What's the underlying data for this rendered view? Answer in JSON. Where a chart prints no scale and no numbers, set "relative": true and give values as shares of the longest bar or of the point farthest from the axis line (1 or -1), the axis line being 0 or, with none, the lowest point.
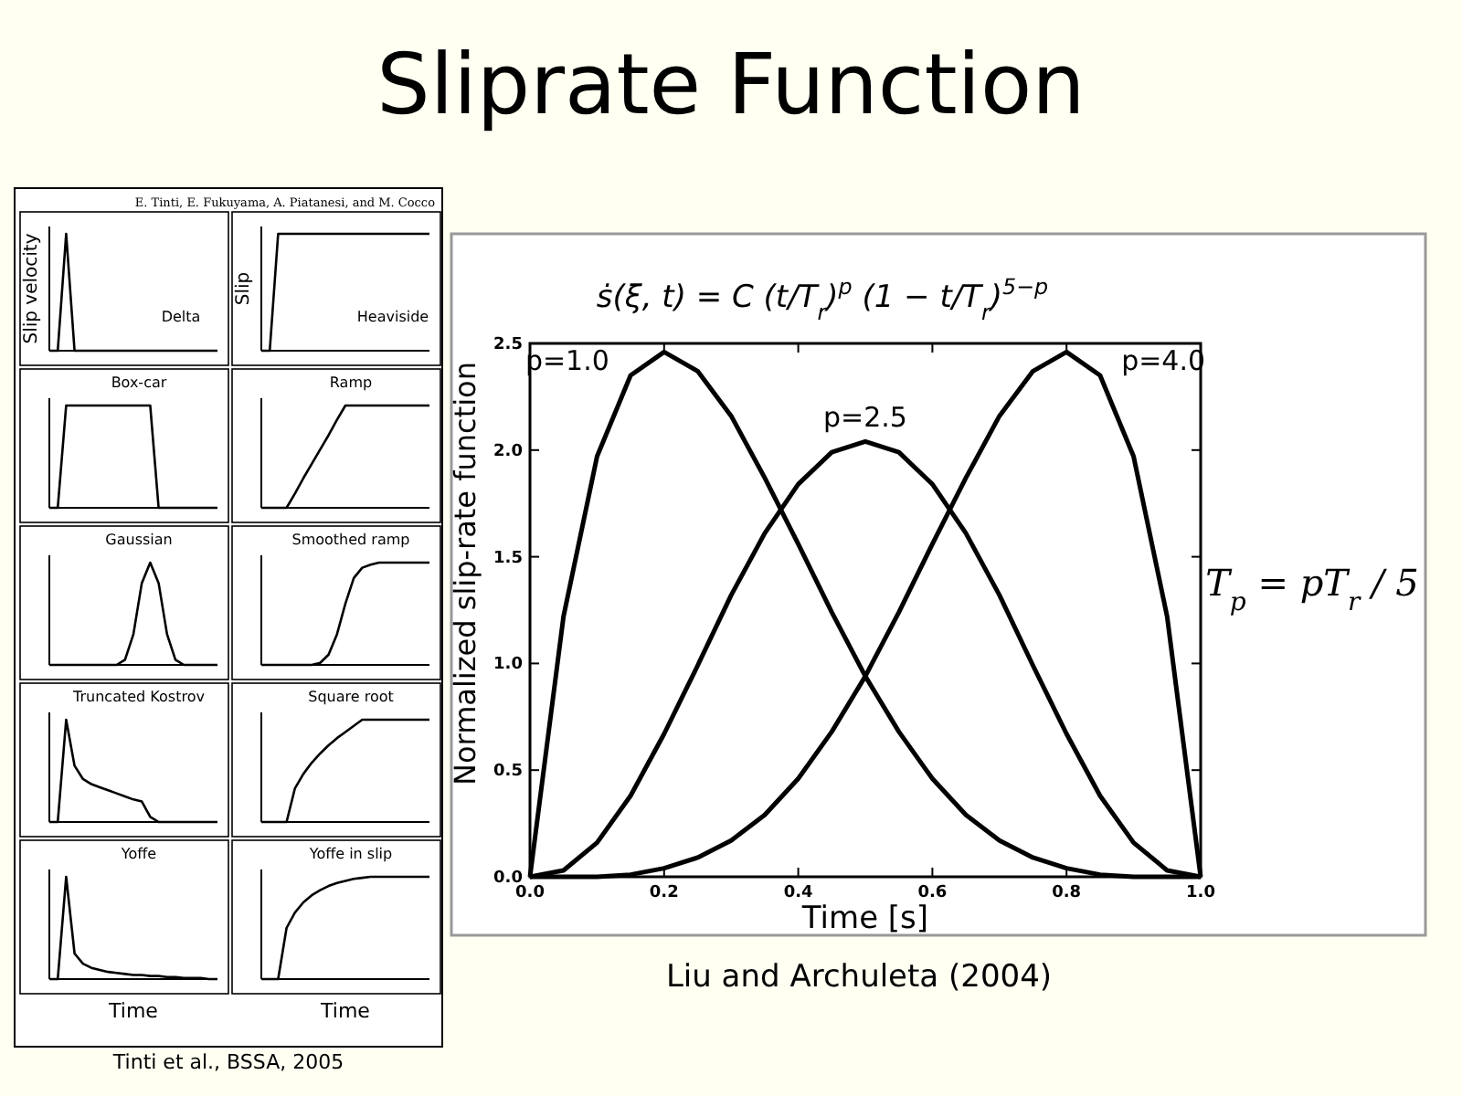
{
  "chart_data": [
    {
      "type": "line",
      "title": "Sliprate Function",
      "xlabel": "Time [s]",
      "ylabel": "Normalized slip-rate function",
      "annotations": [
        "ṡ(ξ, t) = C (t/T$_{r}$)$^{p}$ (1 − t/T$_{r}$)$^{5−p}$",
        "T$_{p}$ = pT$_{r}$ / 5",
        "Liu and Archuleta (2004)"
      ],
      "x": [
        0,
        0.05,
        0.1,
        0.15,
        0.2,
        0.25,
        0.3,
        0.35,
        0.4,
        0.45,
        0.5,
        0.55,
        0.6,
        0.65,
        0.7,
        0.75,
        0.8,
        0.85,
        0.9,
        0.95,
        1
      ],
      "xlim": [
        0,
        1
      ],
      "xticks": [
        {
          "value": 0,
          "label": "0.0"
        },
        {
          "value": 0.2,
          "label": "0.2"
        },
        {
          "value": 0.4,
          "label": "0.4"
        },
        {
          "value": 0.6,
          "label": "0.6"
        },
        {
          "value": 0.8,
          "label": "0.8"
        },
        {
          "value": 1,
          "label": "1.0"
        }
      ],
      "ylim": [
        0,
        2.5
      ],
      "yticks": [
        {
          "value": 0,
          "label": "0.0"
        },
        {
          "value": 0.5,
          "label": "0.5"
        },
        {
          "value": 1,
          "label": "1.0"
        },
        {
          "value": 1.5,
          "label": "1.5"
        },
        {
          "value": 2,
          "label": "2.0"
        },
        {
          "value": 2.5,
          "label": "2.5"
        }
      ],
      "series": [
        {
          "name": "p=1.0",
          "color": "#000000",
          "values": [
            0,
            1.22,
            1.97,
            2.35,
            2.46,
            2.37,
            2.16,
            1.87,
            1.56,
            1.24,
            0.94,
            0.68,
            0.46,
            0.29,
            0.17,
            0.09,
            0.04,
            0.01,
            0,
            0,
            0
          ]
        },
        {
          "name": "p=2.5",
          "color": "#000000",
          "values": [
            0,
            0.03,
            0.16,
            0.38,
            0.67,
            0.99,
            1.32,
            1.61,
            1.84,
            1.99,
            2.04,
            1.99,
            1.84,
            1.61,
            1.32,
            0.99,
            0.67,
            0.38,
            0.16,
            0.03,
            0
          ]
        },
        {
          "name": "p=4.0",
          "color": "#000000",
          "values": [
            0,
            0,
            0,
            0.01,
            0.04,
            0.09,
            0.17,
            0.29,
            0.46,
            0.68,
            0.94,
            1.24,
            1.56,
            1.87,
            2.16,
            2.37,
            2.46,
            2.35,
            1.97,
            1.22,
            0
          ]
        }
      ]
    },
    {
      "type": "line",
      "relative": true,
      "title": "Delta",
      "ylabel": "Slip velocity",
      "annotations": [
        "E. Tinti, E. Fukuyama, A. Piatanesi, and M. Cocco",
        "Tinti et al., BSSA, 2005"
      ],
      "categories": [
        null,
        null,
        null,
        null,
        null,
        null,
        null,
        null,
        null,
        null,
        null,
        null,
        null,
        null,
        null,
        null,
        null,
        null,
        null,
        null,
        null
      ],
      "color": "#000000",
      "values": [
        0,
        0,
        1,
        0,
        0,
        0,
        0,
        0,
        0,
        0,
        0,
        0,
        0,
        0,
        0,
        0,
        0,
        0,
        0,
        0,
        0
      ]
    },
    {
      "type": "line",
      "relative": true,
      "title": "Heaviside",
      "ylabel": "Slip",
      "categories": [
        null,
        null,
        null,
        null,
        null,
        null,
        null,
        null,
        null,
        null,
        null,
        null,
        null,
        null,
        null,
        null,
        null,
        null,
        null,
        null,
        null
      ],
      "color": "#000000",
      "values": [
        0,
        0,
        1,
        1,
        1,
        1,
        1,
        1,
        1,
        1,
        1,
        1,
        1,
        1,
        1,
        1,
        1,
        1,
        1,
        1,
        1
      ]
    },
    {
      "type": "line",
      "relative": true,
      "title": "Box-car",
      "categories": [
        null,
        null,
        null,
        null,
        null,
        null,
        null,
        null,
        null,
        null,
        null,
        null,
        null,
        null,
        null,
        null,
        null,
        null,
        null,
        null,
        null
      ],
      "color": "#000000",
      "values": [
        0,
        0,
        1,
        1,
        1,
        1,
        1,
        1,
        1,
        1,
        1,
        1,
        1,
        0,
        0,
        0,
        0,
        0,
        0,
        0,
        0
      ]
    },
    {
      "type": "line",
      "relative": true,
      "title": "Ramp",
      "categories": [
        null,
        null,
        null,
        null,
        null,
        null,
        null,
        null,
        null,
        null,
        null,
        null,
        null,
        null,
        null,
        null,
        null,
        null,
        null,
        null,
        null
      ],
      "color": "#000000",
      "values": [
        0,
        0,
        0,
        0,
        0.14,
        0.29,
        0.43,
        0.57,
        0.71,
        0.86,
        1,
        1,
        1,
        1,
        1,
        1,
        1,
        1,
        1,
        1,
        1
      ]
    },
    {
      "type": "line",
      "relative": true,
      "title": "Gaussian",
      "categories": [
        null,
        null,
        null,
        null,
        null,
        null,
        null,
        null,
        null,
        null,
        null,
        null,
        null,
        null,
        null,
        null,
        null,
        null,
        null,
        null,
        null
      ],
      "color": "#000000",
      "values": [
        0,
        0,
        0,
        0,
        0,
        0,
        0,
        0,
        0,
        0.05,
        0.3,
        0.8,
        1,
        0.8,
        0.3,
        0.05,
        0,
        0,
        0,
        0,
        0
      ]
    },
    {
      "type": "line",
      "relative": true,
      "title": "Smoothed ramp",
      "categories": [
        null,
        null,
        null,
        null,
        null,
        null,
        null,
        null,
        null,
        null,
        null,
        null,
        null,
        null,
        null,
        null,
        null,
        null,
        null,
        null,
        null
      ],
      "color": "#000000",
      "values": [
        0,
        0,
        0,
        0,
        0,
        0,
        0,
        0.02,
        0.1,
        0.3,
        0.6,
        0.85,
        0.95,
        0.98,
        1,
        1,
        1,
        1,
        1,
        1,
        1
      ]
    },
    {
      "type": "line",
      "relative": true,
      "title": "Truncated Kostrov",
      "categories": [
        null,
        null,
        null,
        null,
        null,
        null,
        null,
        null,
        null,
        null,
        null,
        null,
        null,
        null,
        null,
        null,
        null,
        null,
        null,
        null,
        null
      ],
      "color": "#000000",
      "values": [
        0,
        0,
        1,
        0.55,
        0.42,
        0.37,
        0.34,
        0.31,
        0.28,
        0.25,
        0.22,
        0.2,
        0.05,
        0,
        0,
        0,
        0,
        0,
        0,
        0,
        0
      ]
    },
    {
      "type": "line",
      "relative": true,
      "title": "Square root",
      "categories": [
        null,
        null,
        null,
        null,
        null,
        null,
        null,
        null,
        null,
        null,
        null,
        null,
        null,
        null,
        null,
        null,
        null,
        null,
        null,
        null,
        null
      ],
      "color": "#000000",
      "values": [
        0,
        0,
        0,
        0,
        0.33,
        0.47,
        0.58,
        0.67,
        0.75,
        0.82,
        0.88,
        0.94,
        1,
        1,
        1,
        1,
        1,
        1,
        1,
        1,
        1
      ]
    },
    {
      "type": "line",
      "relative": true,
      "title": "Yoffe",
      "xlabel": "Time",
      "categories": [
        null,
        null,
        null,
        null,
        null,
        null,
        null,
        null,
        null,
        null,
        null,
        null,
        null,
        null,
        null,
        null,
        null,
        null,
        null,
        null,
        null
      ],
      "color": "#000000",
      "values": [
        0,
        0,
        1,
        0.25,
        0.15,
        0.11,
        0.09,
        0.07,
        0.06,
        0.05,
        0.04,
        0.04,
        0.03,
        0.03,
        0.02,
        0.02,
        0.01,
        0.01,
        0.01,
        0,
        0
      ]
    },
    {
      "type": "line",
      "relative": true,
      "title": "Yoffe in slip",
      "xlabel": "Time",
      "categories": [
        null,
        null,
        null,
        null,
        null,
        null,
        null,
        null,
        null,
        null,
        null,
        null,
        null,
        null,
        null,
        null,
        null,
        null,
        null,
        null,
        null
      ],
      "color": "#000000",
      "values": [
        0,
        0,
        0,
        0.5,
        0.65,
        0.75,
        0.82,
        0.87,
        0.91,
        0.94,
        0.96,
        0.98,
        0.99,
        1,
        1,
        1,
        1,
        1,
        1,
        1,
        1
      ]
    }
  ]
}
